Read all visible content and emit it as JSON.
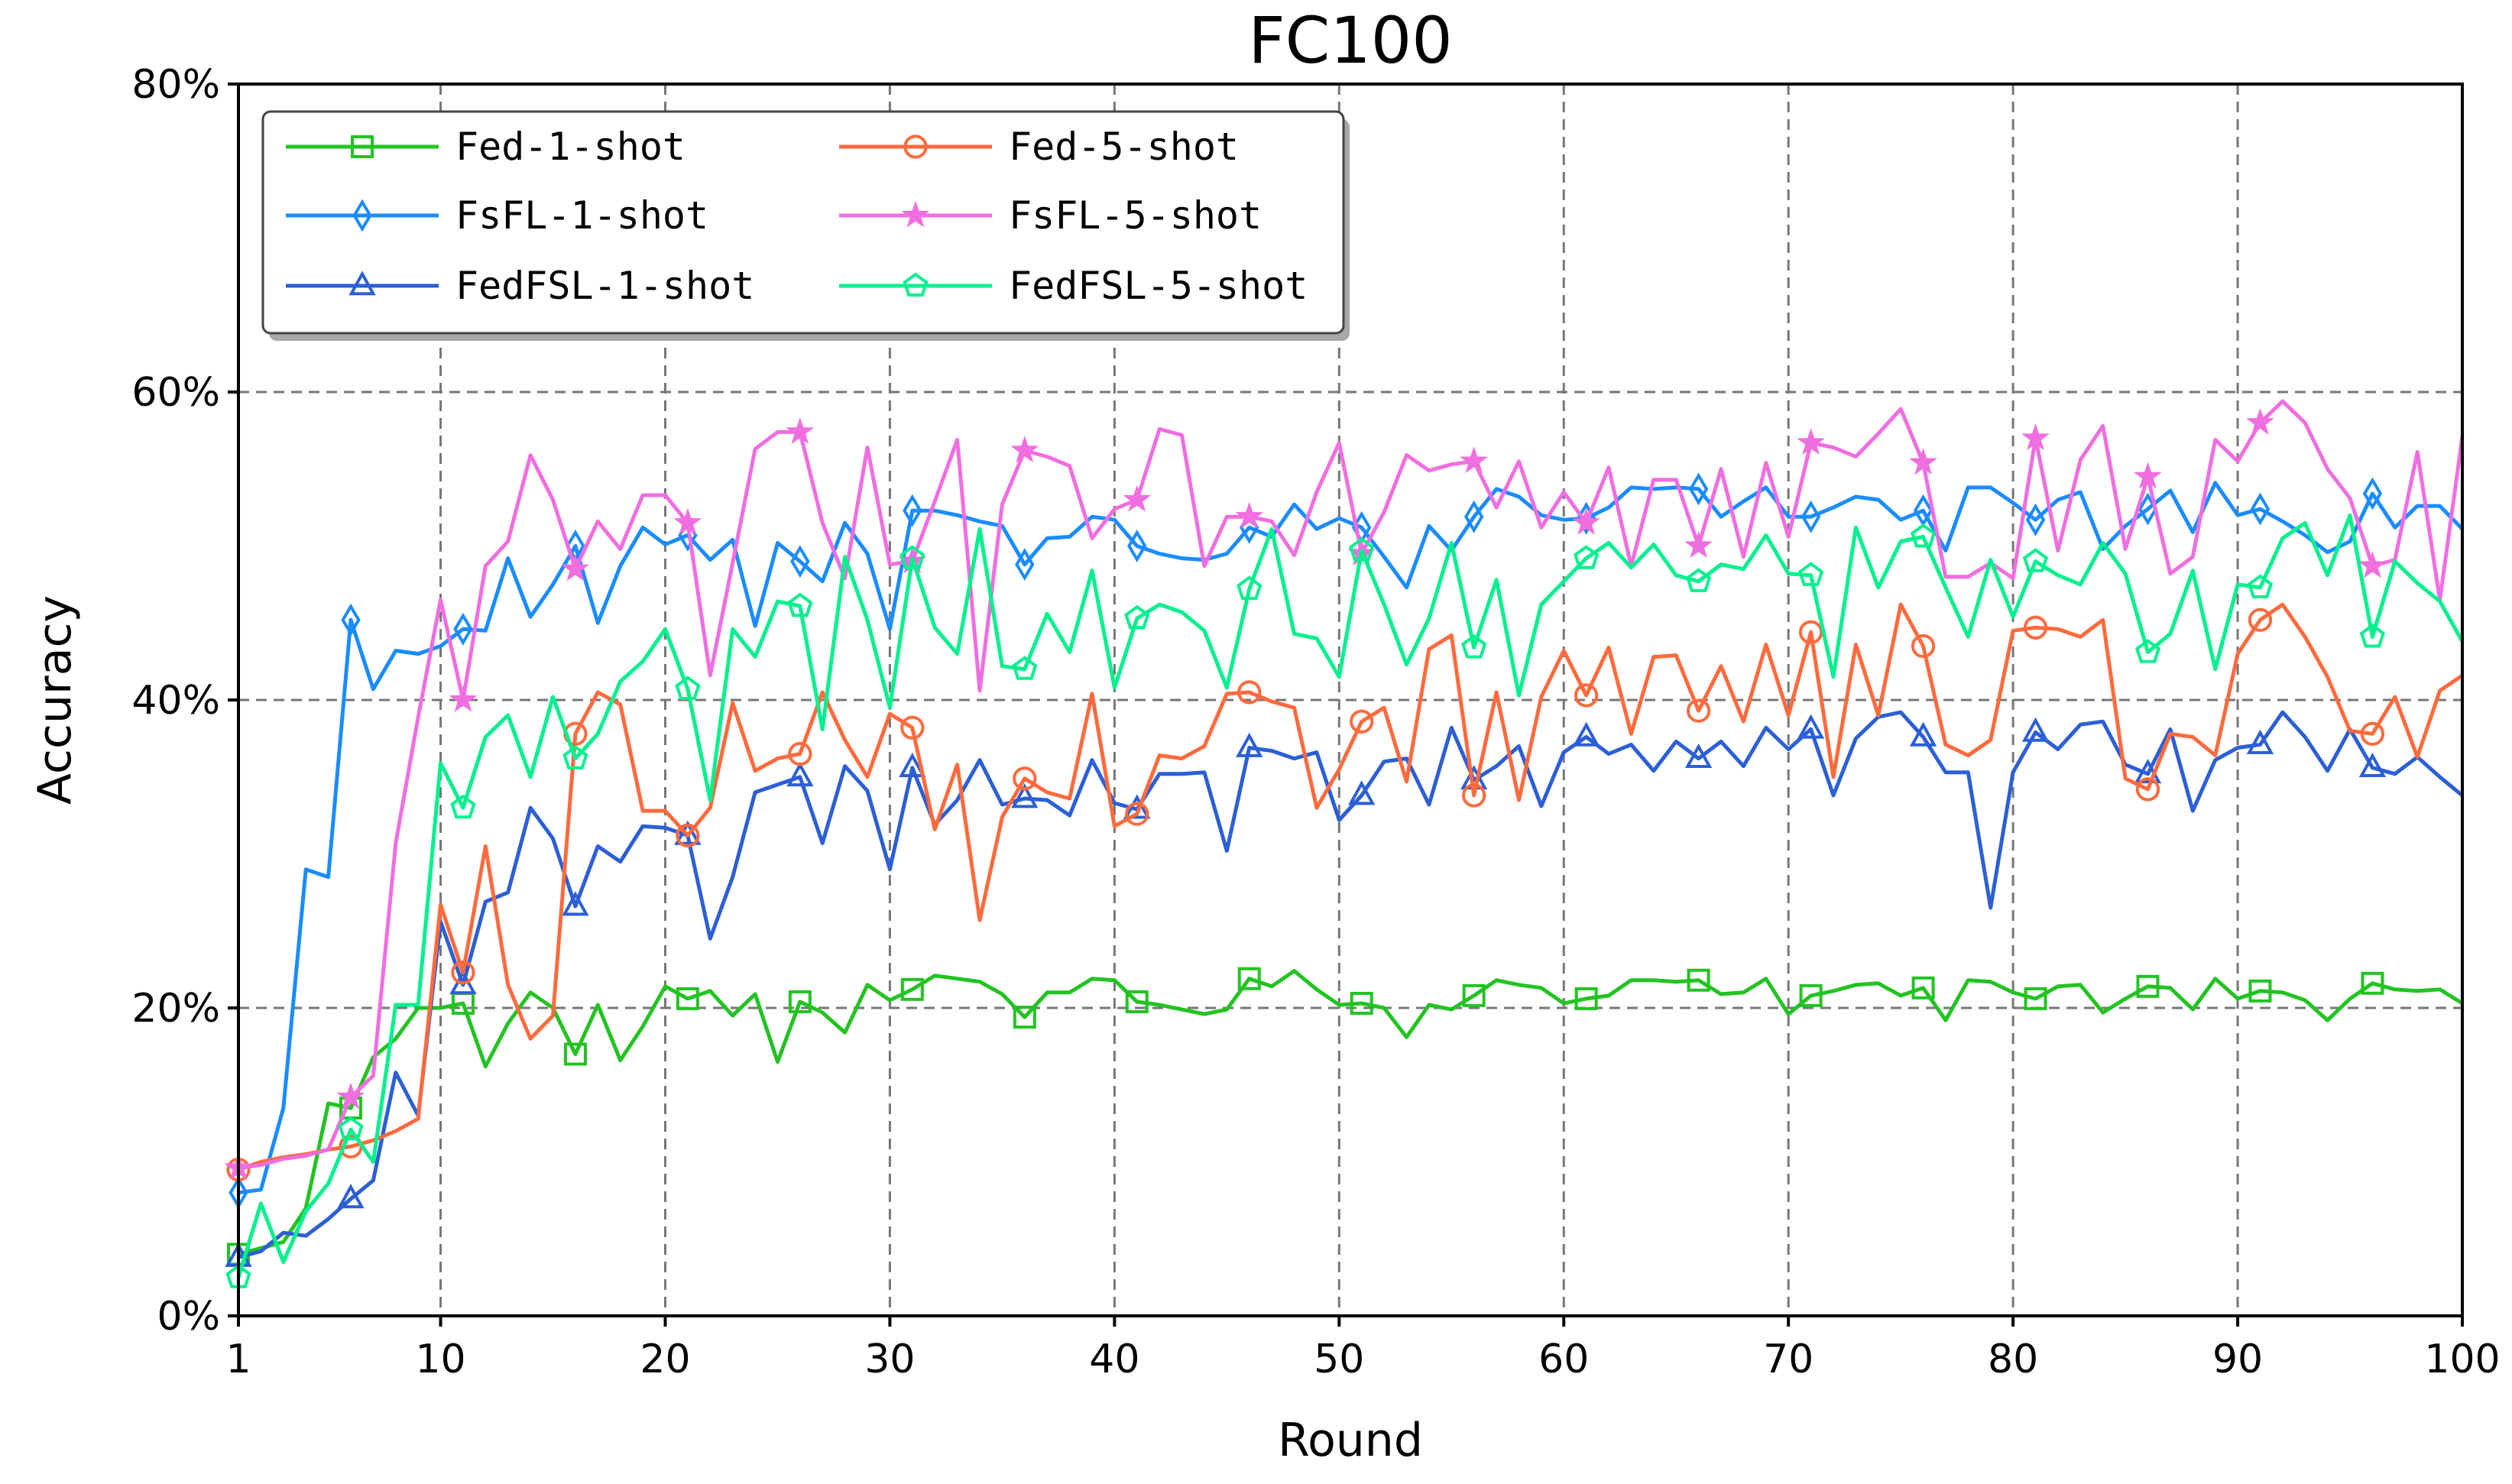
{
  "chart_data": {
    "type": "line",
    "title": "FC100",
    "xlabel": "Round",
    "ylabel": "Accuracy",
    "xlim": [
      1,
      100
    ],
    "ylim": [
      0,
      80
    ],
    "xticks": [
      1,
      10,
      20,
      30,
      40,
      50,
      60,
      70,
      80,
      90,
      100
    ],
    "yticks": [
      0,
      20,
      40,
      60,
      80
    ],
    "ytick_labels": [
      "0%",
      "20%",
      "40%",
      "60%",
      "80%"
    ],
    "grid": true,
    "legend_position": "top-left",
    "marker_every": 5,
    "marker_start": 1,
    "series": [
      {
        "name": "Fed-1-shot",
        "color": "#22c322",
        "marker": "square",
        "values": [
          4,
          4.4,
          4.8,
          7,
          13.8,
          13.5,
          16.8,
          18,
          20,
          20,
          20.3,
          16.2,
          19,
          21,
          20,
          17,
          20.2,
          16.6,
          18.8,
          21.4,
          20.6,
          21.1,
          19.5,
          20.9,
          16.5,
          20.4,
          19.7,
          18.4,
          21.5,
          20.5,
          21.2,
          22.1,
          21.9,
          21.7,
          20.9,
          19.4,
          21,
          21,
          21.9,
          21.8,
          20.4,
          20.2,
          19.9,
          19.6,
          19.9,
          21.9,
          21.4,
          22.4,
          21.2,
          20.2,
          20.3,
          20,
          18.1,
          20.2,
          19.9,
          20.8,
          21.8,
          21.5,
          21.3,
          20.3,
          20.6,
          20.8,
          21.8,
          21.8,
          21.7,
          21.8,
          20.9,
          21,
          21.9,
          19.6,
          20.8,
          21.1,
          21.5,
          21.6,
          20.8,
          21.3,
          19.2,
          21.8,
          21.7,
          21,
          20.6,
          21.4,
          21.5,
          19.7,
          20.6,
          21.4,
          21.3,
          19.9,
          21.9,
          20.6,
          21.1,
          21,
          20.5,
          19.2,
          20.6,
          21.6,
          21.2,
          21.1,
          21.2,
          20.3
        ]
      },
      {
        "name": "FsFL-1-shot",
        "color": "#1a8cff",
        "marker": "diamond",
        "values": [
          8,
          8.2,
          13.5,
          29,
          28.5,
          45.2,
          40.7,
          43.2,
          43,
          43.5,
          44.6,
          44.5,
          49.2,
          45.4,
          47.5,
          50,
          45,
          48.7,
          51.2,
          50.1,
          50.7,
          49.1,
          50.4,
          44.8,
          50.2,
          49,
          47.7,
          51.5,
          49.5,
          44.6,
          52.3,
          52.3,
          52,
          51.6,
          51.3,
          48.8,
          50.5,
          50.6,
          51.9,
          51.7,
          50,
          49.5,
          49.2,
          49.1,
          49.5,
          51.2,
          50.6,
          52.7,
          51.1,
          51.8,
          51.2,
          49.3,
          47.3,
          51.3,
          49.7,
          51.9,
          53.7,
          53.2,
          52,
          51.7,
          51.8,
          52.5,
          53.8,
          53.7,
          53.8,
          53.7,
          51.9,
          52.9,
          53.8,
          51.9,
          51.9,
          52.5,
          53.2,
          53,
          51.7,
          52.3,
          49.7,
          53.8,
          53.8,
          52.8,
          51.7,
          53,
          53.5,
          49.8,
          51.3,
          52.4,
          53.6,
          50.9,
          54.1,
          52,
          52.4,
          51.6,
          50.7,
          49.6,
          50.3,
          53.4,
          51.2,
          52.6,
          52.6,
          51.1
        ]
      },
      {
        "name": "FedFSL-1-shot",
        "color": "#2c5fd6",
        "marker": "triangle",
        "values": [
          3.8,
          4.2,
          5.4,
          5.2,
          6.3,
          7.6,
          8.8,
          15.8,
          13,
          25.6,
          21.5,
          26.9,
          27.5,
          33,
          31,
          26.6,
          30.5,
          29.5,
          31.8,
          31.7,
          31.2,
          24.5,
          28.5,
          34,
          34.5,
          35,
          30.7,
          35.7,
          34.1,
          29,
          35.6,
          31.9,
          33.5,
          36.1,
          33.2,
          33.6,
          33.5,
          32.5,
          36.1,
          33.3,
          32.9,
          35.2,
          35.2,
          35.3,
          30.2,
          36.9,
          36.7,
          36.2,
          36.6,
          32.2,
          33.8,
          36,
          36.2,
          33.2,
          38.2,
          34.8,
          35.7,
          37,
          33.1,
          36.6,
          37.6,
          36.5,
          37.1,
          35.4,
          37.3,
          36.2,
          37.3,
          35.7,
          38.2,
          36.8,
          38.1,
          33.8,
          37.5,
          38.9,
          39.2,
          37.6,
          35.3,
          35.3,
          26.5,
          35.3,
          37.9,
          36.8,
          38.4,
          38.6,
          35.8,
          35.2,
          38.1,
          32.8,
          36.1,
          36.9,
          37.1,
          39.2,
          37.6,
          35.4,
          38.1,
          35.6,
          35.2,
          36.3,
          35,
          33.8
        ]
      },
      {
        "name": "Fed-5-shot",
        "color": "#ff6a3d",
        "marker": "circle",
        "values": [
          9.5,
          10,
          10.3,
          10.5,
          10.8,
          11,
          11.4,
          12,
          12.8,
          26.7,
          22.3,
          30.5,
          21.5,
          18,
          19.5,
          37.8,
          40.5,
          39.7,
          32.8,
          32.8,
          31.2,
          33,
          39.8,
          35.4,
          36.2,
          36.5,
          40.5,
          37.4,
          35,
          39.1,
          38.2,
          31.6,
          35.8,
          25.7,
          32.4,
          34.9,
          34,
          33.6,
          40.4,
          31.8,
          32.6,
          36.4,
          36.2,
          37,
          40.4,
          40.5,
          39.9,
          39.5,
          33,
          35.5,
          38.6,
          39.5,
          34.7,
          43.3,
          44.2,
          33.8,
          40.5,
          33.5,
          40.2,
          43.2,
          40.3,
          43.4,
          37.8,
          42.8,
          42.9,
          39.3,
          42.2,
          38.6,
          43.6,
          39,
          44.4,
          35,
          43.6,
          39,
          46.2,
          43.5,
          37.1,
          36.4,
          37.4,
          44.5,
          44.7,
          44.6,
          44.1,
          45.2,
          34.9,
          34.2,
          37.8,
          37.6,
          36.4,
          43,
          45.2,
          46.2,
          44.1,
          41.5,
          38,
          37.8,
          40.2,
          36.3,
          40.6,
          41.6
        ]
      },
      {
        "name": "FsFL-5-shot",
        "color": "#f06ee0",
        "marker": "star",
        "values": [
          9.6,
          9.8,
          10.2,
          10.4,
          10.8,
          14.2,
          15.6,
          30.7,
          38.9,
          46.5,
          40,
          48.7,
          50.3,
          55.9,
          53,
          48.5,
          51.6,
          49.8,
          53.3,
          53.3,
          51.5,
          41.6,
          48.9,
          56.3,
          57.4,
          57.4,
          51.5,
          47.9,
          56.4,
          48.8,
          49,
          52.9,
          56.9,
          40.6,
          52.7,
          56.2,
          55.8,
          55.2,
          50.5,
          52.4,
          53,
          57.6,
          57.2,
          48.7,
          51.9,
          51.9,
          51.6,
          49.4,
          53.5,
          56.7,
          49.5,
          52.2,
          55.9,
          54.9,
          55.3,
          55.5,
          52.5,
          55.5,
          51.2,
          53.5,
          51.5,
          55.1,
          48.7,
          54.3,
          54.3,
          50,
          55,
          49.3,
          55.4,
          50.6,
          56.7,
          56.4,
          55.8,
          57.3,
          58.9,
          55.4,
          48,
          48,
          48.9,
          47.9,
          57,
          49.7,
          55.6,
          57.8,
          49.8,
          54.5,
          48.2,
          49.3,
          56.9,
          55.5,
          58,
          59.4,
          58,
          55,
          53.1,
          48.7,
          49.1,
          56.1,
          46.5,
          57.1
        ]
      },
      {
        "name": "FedFSL-5-shot",
        "color": "#00f08e",
        "marker": "pentagon",
        "values": [
          2.5,
          7.3,
          3.5,
          6.8,
          8.6,
          12.1,
          10,
          20.2,
          20.2,
          35.9,
          33,
          37.6,
          39,
          35,
          40.2,
          36.2,
          37.8,
          41.2,
          42.5,
          44.6,
          40.7,
          33.5,
          44.6,
          42.8,
          46.4,
          46.1,
          38.1,
          49.3,
          45.2,
          39.5,
          49.2,
          44.7,
          43,
          51.1,
          42.2,
          42,
          45.6,
          43.1,
          48.4,
          40.8,
          45.3,
          46.2,
          45.7,
          44.5,
          40.8,
          47.2,
          51.1,
          44.3,
          44,
          41.5,
          49.7,
          46.2,
          42.3,
          45.3,
          50.2,
          43.4,
          47.8,
          40.3,
          46.2,
          47.7,
          49.2,
          50.2,
          48.6,
          50.1,
          48.1,
          47.7,
          48.8,
          48.5,
          50.7,
          48.2,
          48.1,
          41.5,
          51.2,
          47.3,
          50.3,
          50.6,
          47.3,
          44.1,
          49.1,
          45.4,
          49,
          48.1,
          47.5,
          50.2,
          48.2,
          43.1,
          44.3,
          48.4,
          42,
          47.5,
          47.3,
          50.5,
          51.5,
          48.1,
          52,
          44.1,
          49,
          47.6,
          46.4,
          43.8
        ]
      }
    ]
  }
}
